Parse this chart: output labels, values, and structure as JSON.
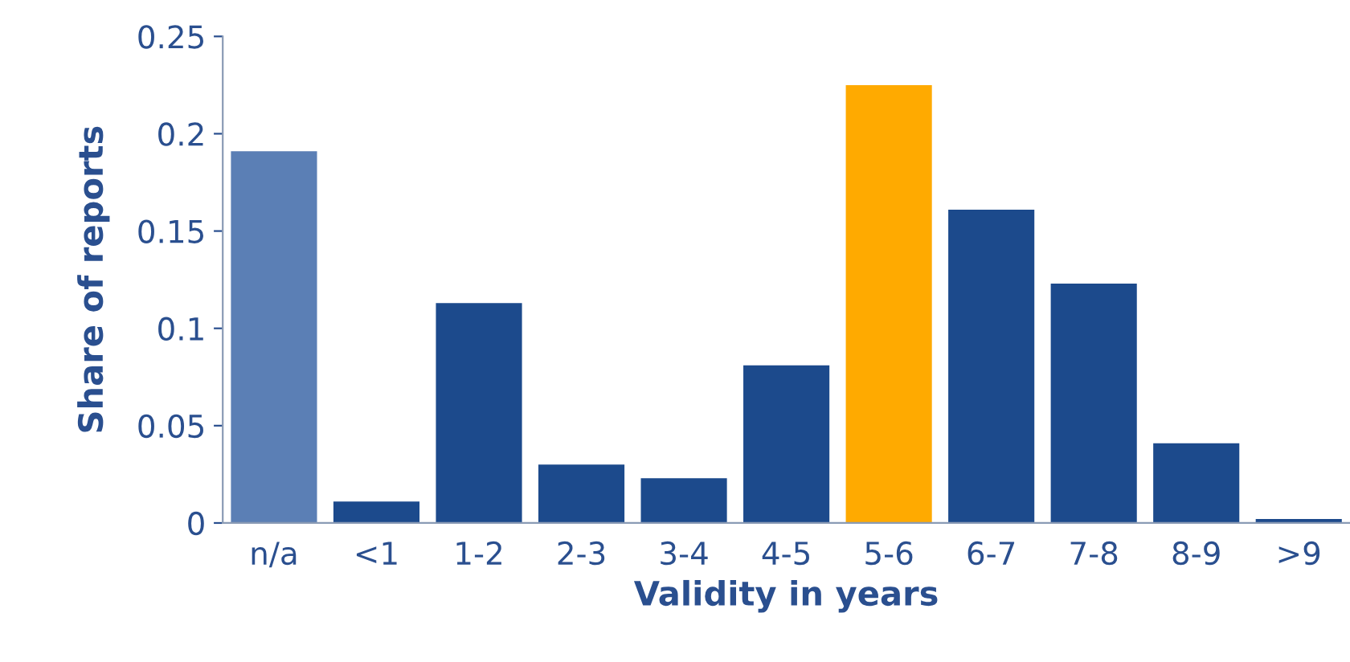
{
  "chart_data": {
    "type": "bar",
    "xlabel": "Validity in years",
    "ylabel": "Share of reports",
    "categories": [
      "n/a",
      "<1",
      "1-2",
      "2-3",
      "3-4",
      "4-5",
      "5-6",
      "6-7",
      "7-8",
      "8-9",
      ">9"
    ],
    "values": [
      0.191,
      0.011,
      0.113,
      0.03,
      0.023,
      0.081,
      0.225,
      0.161,
      0.123,
      0.041,
      0.002
    ],
    "colors": [
      "#5b7fb5",
      "#1c4a8c",
      "#1c4a8c",
      "#1c4a8c",
      "#1c4a8c",
      "#1c4a8c",
      "#ffaa00",
      "#1c4a8c",
      "#1c4a8c",
      "#1c4a8c",
      "#1c4a8c"
    ],
    "ylim": [
      0,
      0.25
    ],
    "yticks": [
      0,
      0.05,
      0.1,
      0.15,
      0.2,
      0.25
    ],
    "grid": false
  }
}
